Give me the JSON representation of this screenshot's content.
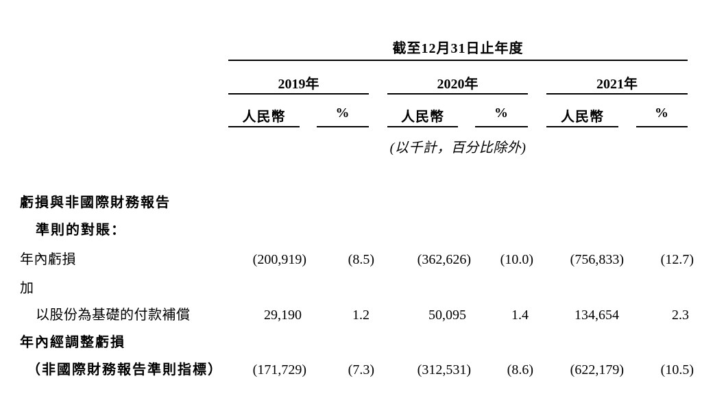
{
  "page": {
    "background": "#ffffff",
    "text_color": "#000000",
    "rule_color": "#000000"
  },
  "table": {
    "period_header": "截至12月31日止年度",
    "unit_note": "(以千計，百分比除外)",
    "year_groups": [
      {
        "year": "2019年",
        "subcols": [
          "人民幣",
          "%"
        ]
      },
      {
        "year": "2020年",
        "subcols": [
          "人民幣",
          "%"
        ]
      },
      {
        "year": "2021年",
        "subcols": [
          "人民幣",
          "%"
        ]
      }
    ],
    "rows": [
      {
        "label": "虧損與非國際財務報告",
        "values": []
      },
      {
        "label": "準則的對賬：",
        "values": []
      },
      {
        "label": "年內虧損",
        "values": [
          "(200,919)",
          "(8.5)",
          "(362,626)",
          "(10.0)",
          "(756,833)",
          "(12.7)"
        ]
      },
      {
        "label": "加",
        "values": []
      },
      {
        "label": "以股份為基礎的付款補償",
        "values": [
          "29,190",
          "1.2",
          "50,095",
          "1.4",
          "134,654",
          "2.3"
        ]
      },
      {
        "label": "年內經調整虧損",
        "values": []
      },
      {
        "label": "（非國際財務報告準則指標）",
        "values": [
          "(171,729)",
          "(7.3)",
          "(312,531)",
          "(8.6)",
          "(622,179)",
          "(10.5)"
        ]
      }
    ]
  }
}
